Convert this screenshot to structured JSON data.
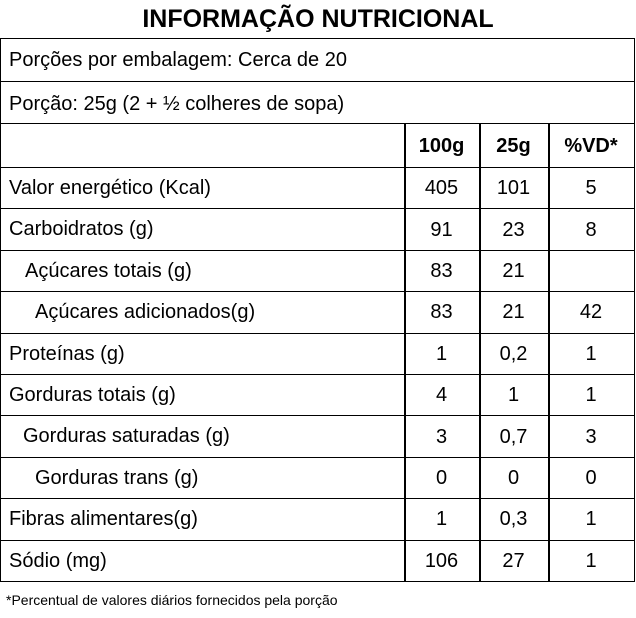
{
  "title": "INFORMAÇÃO NUTRICIONAL",
  "servings_per_package": "Porções por embalagem: Cerca de 20",
  "serving_size": "Porção: 25g (2 + ½ colheres de sopa)",
  "columns": [
    "100g",
    "25g",
    "%VD*"
  ],
  "rows": [
    {
      "label": "Valor energético (Kcal)",
      "v100": "405",
      "v25": "101",
      "vd": "5"
    },
    {
      "label": "Carboidratos (g)",
      "v100": "91",
      "v25": "23",
      "vd": "8"
    },
    {
      "label": "Açúcares totais (g)",
      "v100": "83",
      "v25": "21",
      "vd": ""
    },
    {
      "label": "Açúcares adicionados(g)",
      "v100": "83",
      "v25": "21",
      "vd": "42"
    },
    {
      "label": "Proteínas (g)",
      "v100": "1",
      "v25": "0,2",
      "vd": "1"
    },
    {
      "label": "Gorduras totais (g)",
      "v100": "4",
      "v25": "1",
      "vd": "1"
    },
    {
      "label": "Gorduras saturadas (g)",
      "v100": "3",
      "v25": "0,7",
      "vd": "3"
    },
    {
      "label": "Gorduras trans (g)",
      "v100": "0",
      "v25": "0",
      "vd": "0"
    },
    {
      "label": "Fibras alimentares(g)",
      "v100": "1",
      "v25": "0,3",
      "vd": "1"
    },
    {
      "label": "Sódio (mg)",
      "v100": "106",
      "v25": "27",
      "vd": "1"
    }
  ],
  "footnote": "*Percentual de valores diários fornecidos pela porção"
}
